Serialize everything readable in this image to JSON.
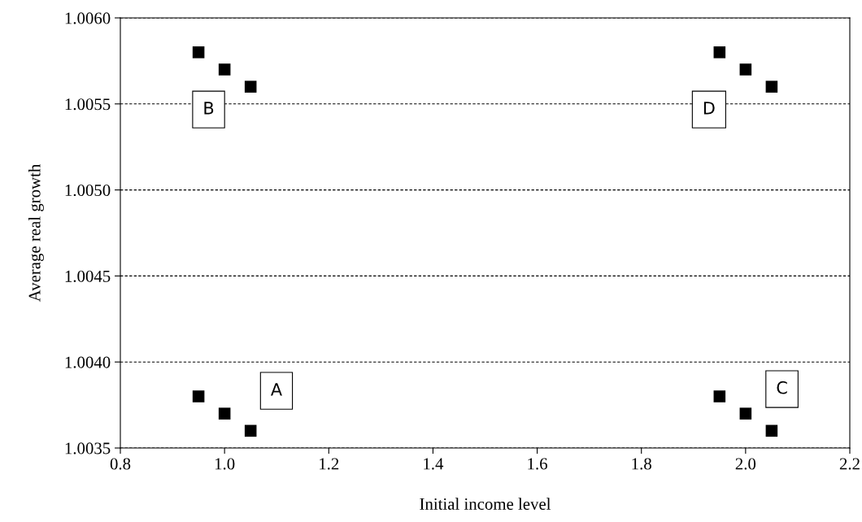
{
  "chart_data": {
    "type": "scatter",
    "xlabel": "Initial income level",
    "ylabel": "Average real growth",
    "marker": "square",
    "grid": "y",
    "legend": false,
    "series": [
      {
        "color": "#000000",
        "x": [
          0.95,
          1.0,
          1.05,
          0.95,
          1.0,
          1.05,
          1.95,
          2.0,
          2.05,
          1.95,
          2.0,
          2.05
        ],
        "values": [
          1.0038,
          1.0037,
          1.0036,
          1.0058,
          1.0057,
          1.0056,
          1.0038,
          1.0037,
          1.0036,
          1.0058,
          1.0057,
          1.0056
        ]
      }
    ],
    "annotations": [
      "A",
      "B",
      "C",
      "D"
    ],
    "xlim": [
      0.8,
      2.2
    ],
    "xticks": [
      {
        "value": 0.8,
        "label": "0.8"
      },
      {
        "value": 1.0,
        "label": "1.0"
      },
      {
        "value": 1.2,
        "label": "1.2"
      },
      {
        "value": 1.4,
        "label": "1.4"
      },
      {
        "value": 1.6,
        "label": "1.6"
      },
      {
        "value": 1.8,
        "label": "1.8"
      },
      {
        "value": 2.0,
        "label": "2.0"
      },
      {
        "value": 2.2,
        "label": "2.2"
      }
    ],
    "ylim": [
      1.0035,
      1.006
    ],
    "yticks": [
      {
        "value": 1.0035,
        "label": "1.0035"
      },
      {
        "value": 1.004,
        "label": "1.0040"
      },
      {
        "value": 1.0045,
        "label": "1.0045"
      },
      {
        "value": 1.005,
        "label": "1.0050"
      },
      {
        "value": 1.0055,
        "label": "1.0055"
      },
      {
        "value": 1.006,
        "label": "1.0060"
      }
    ]
  }
}
